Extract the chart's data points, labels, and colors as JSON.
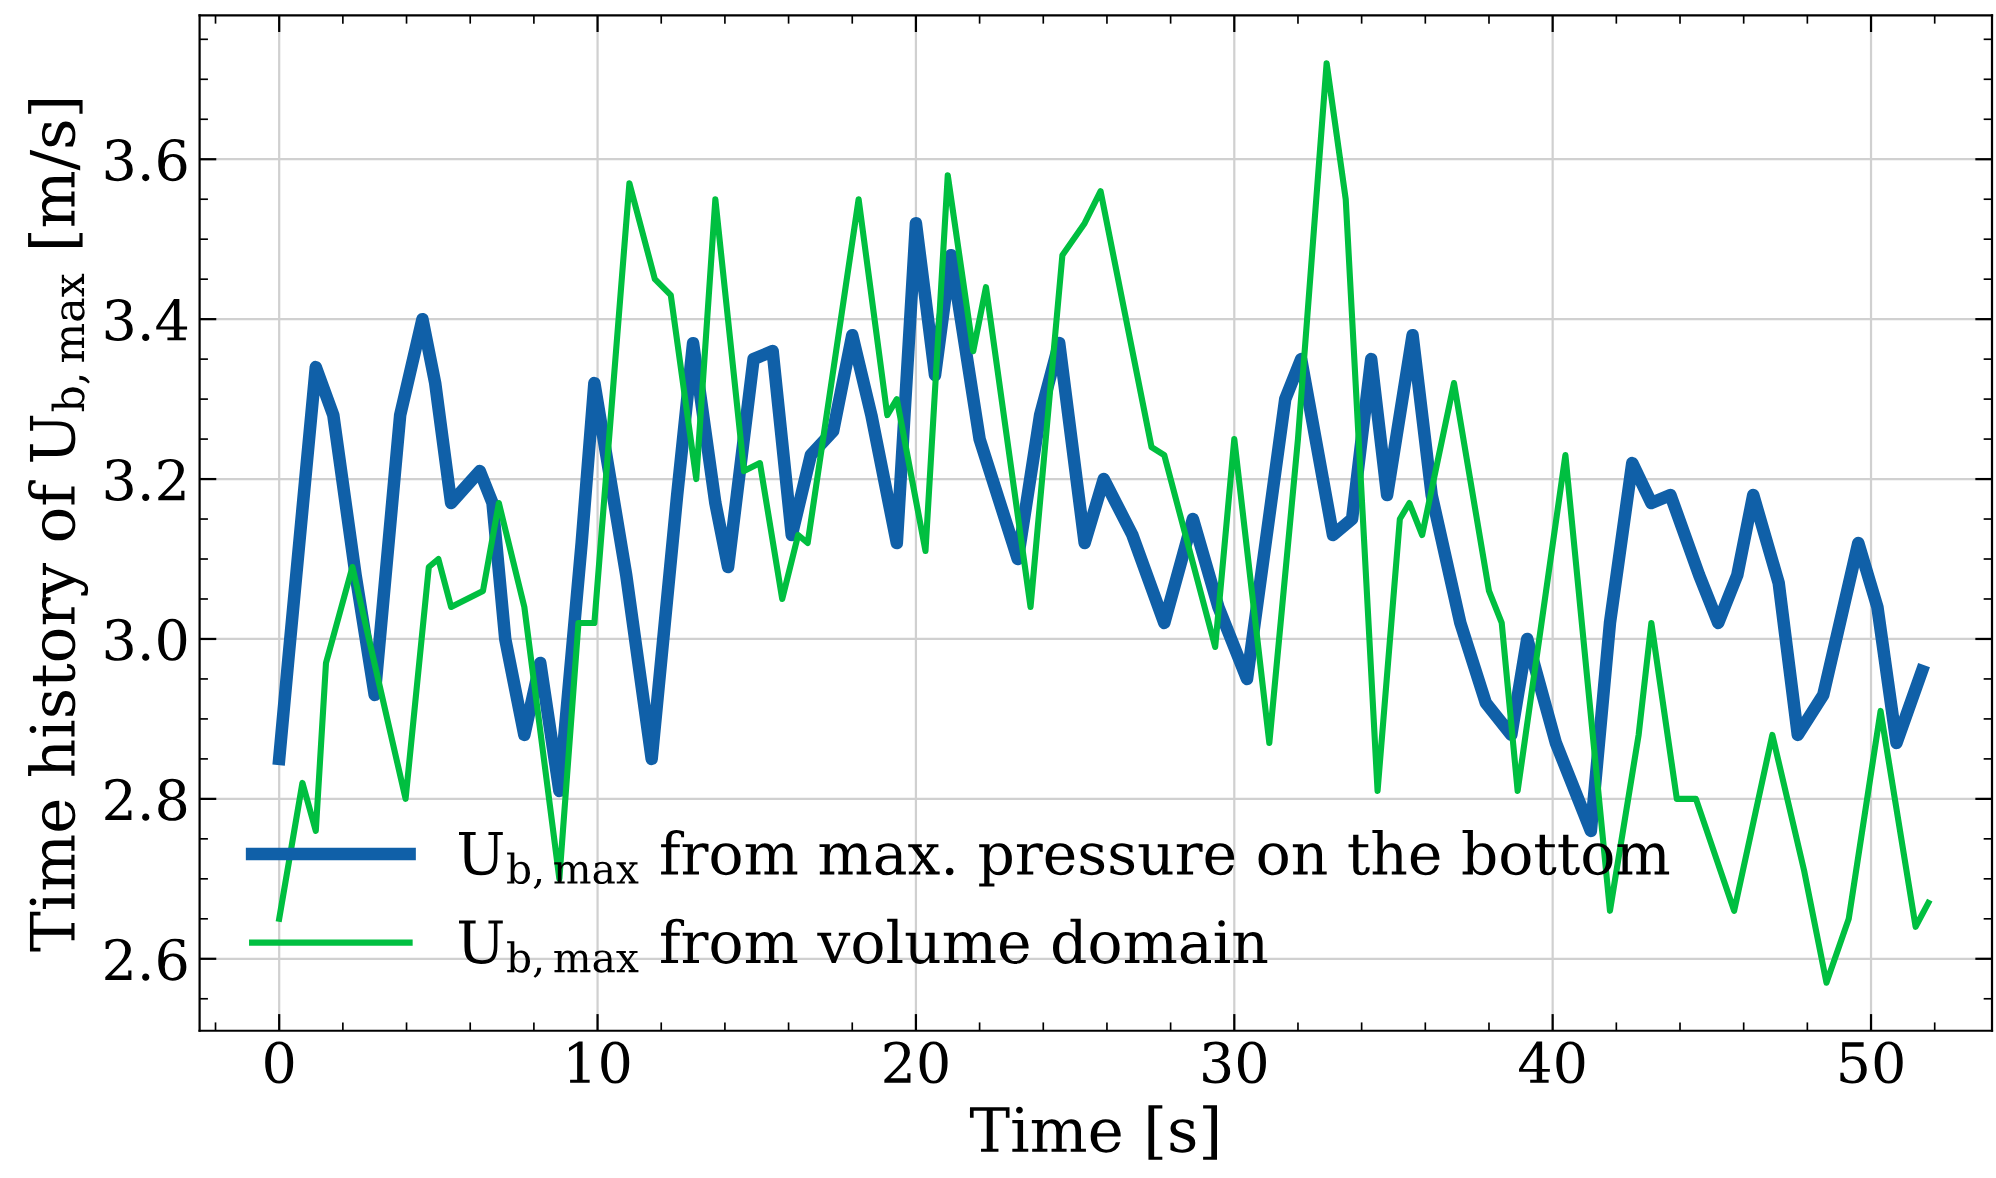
{
  "chart_data": {
    "type": "line",
    "xlabel": "Time [s]",
    "ylabel": "Time history of U$_{b,max}$ [m/s]",
    "xlim": [
      -2.5,
      53.8
    ],
    "ylim": [
      2.51,
      3.78
    ],
    "xticks": [
      0,
      10,
      20,
      30,
      40,
      50
    ],
    "yticks": [
      2.6,
      2.8,
      {
        "value": 3,
        "label": "3.0"
      },
      3.2,
      3.4,
      3.6
    ],
    "grid": true,
    "legend": "bottom left",
    "series": [
      {
        "name": "U$_{b,max}$ from max. pressure on the bottom",
        "color": "#1060a8",
        "x": [
          0,
          0.3,
          1.15,
          1.7,
          2.4,
          3.0,
          3.8,
          4.5,
          4.9,
          5.4,
          6.3,
          6.7,
          7.1,
          7.7,
          8.2,
          8.8,
          9.5,
          9.9,
          10.9,
          11.7,
          12.5,
          13.0,
          13.7,
          14.1,
          14.9,
          15.5,
          16.1,
          16.7,
          17.4,
          18.0,
          18.6,
          19.4,
          20.0,
          20.6,
          21.1,
          22.0,
          23.2,
          23.9,
          24.5,
          25.3,
          25.9,
          26.8,
          27.8,
          28.7,
          29.5,
          30.4,
          31.6,
          32.1,
          33.1,
          33.7,
          34.3,
          34.8,
          35.6,
          36.2,
          37.1,
          37.9,
          38.7,
          39.2,
          40.1,
          41.2,
          41.8,
          42.5,
          43.1,
          43.7,
          44.6,
          45.2,
          45.8,
          46.3,
          47.1,
          47.7,
          48.5,
          49.6,
          50.2,
          50.8,
          51.6
        ],
        "values": [
          2.85,
          2.98,
          3.34,
          3.28,
          3.08,
          2.93,
          3.28,
          3.4,
          3.32,
          3.17,
          3.21,
          3.17,
          3.0,
          2.88,
          2.97,
          2.81,
          3.12,
          3.32,
          3.08,
          2.85,
          3.18,
          3.37,
          3.17,
          3.09,
          3.35,
          3.36,
          3.13,
          3.23,
          3.26,
          3.38,
          3.28,
          3.12,
          3.52,
          3.33,
          3.48,
          3.25,
          3.1,
          3.28,
          3.37,
          3.12,
          3.2,
          3.13,
          3.02,
          3.15,
          3.04,
          2.95,
          3.3,
          3.35,
          3.13,
          3.15,
          3.35,
          3.18,
          3.38,
          3.18,
          3.02,
          2.92,
          2.88,
          3.0,
          2.87,
          2.76,
          3.02,
          3.22,
          3.17,
          3.18,
          3.08,
          3.02,
          3.08,
          3.18,
          3.07,
          2.88,
          2.93,
          3.12,
          3.04,
          2.87,
          2.96
        ]
      },
      {
        "name": "U$_{b,max}$ from volume domain",
        "color": "#00bf40",
        "x": [
          0,
          0.73,
          1.15,
          1.47,
          2.3,
          3.97,
          4.7,
          5.0,
          5.4,
          6.4,
          6.9,
          7.7,
          8.8,
          9.4,
          9.9,
          11.0,
          11.8,
          12.3,
          13.1,
          13.7,
          14.6,
          15.1,
          15.8,
          16.3,
          16.6,
          18.2,
          19.1,
          19.4,
          20.3,
          21.0,
          21.8,
          22.2,
          23.6,
          24.6,
          25.3,
          25.8,
          27.4,
          27.8,
          29.4,
          30.0,
          31.1,
          32.0,
          32.9,
          33.5,
          34.5,
          35.2,
          35.5,
          35.9,
          36.9,
          38.0,
          38.4,
          38.9,
          40.4,
          41.8,
          42.7,
          43.1,
          43.9,
          44.5,
          45.7,
          46.9,
          47.9,
          48.6,
          49.3,
          50.3,
          51.4,
          51.8
        ],
        "values": [
          2.65,
          2.82,
          2.76,
          2.97,
          3.09,
          2.8,
          3.09,
          3.1,
          3.04,
          3.06,
          3.17,
          3.04,
          2.7,
          3.02,
          3.02,
          3.57,
          3.45,
          3.43,
          3.2,
          3.55,
          3.21,
          3.22,
          3.05,
          3.13,
          3.12,
          3.55,
          3.28,
          3.3,
          3.11,
          3.58,
          3.36,
          3.44,
          3.04,
          3.48,
          3.52,
          3.56,
          3.24,
          3.23,
          2.99,
          3.25,
          2.87,
          3.25,
          3.72,
          3.55,
          2.81,
          3.15,
          3.17,
          3.13,
          3.32,
          3.06,
          3.02,
          2.81,
          3.23,
          2.66,
          2.88,
          3.02,
          2.8,
          2.8,
          2.66,
          2.88,
          2.71,
          2.57,
          2.65,
          2.91,
          2.64,
          2.67
        ]
      }
    ]
  }
}
